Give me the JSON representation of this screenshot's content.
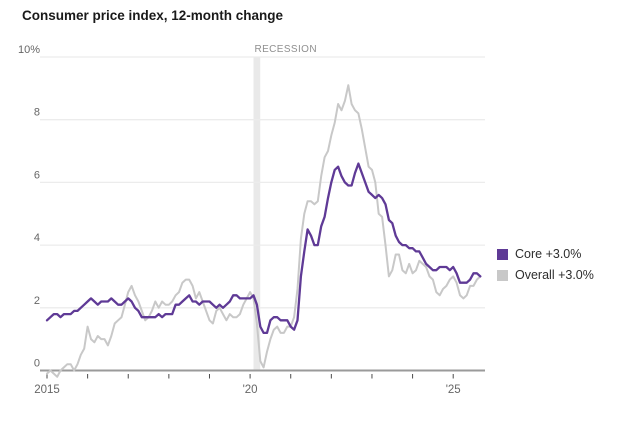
{
  "title": "Consumer price index, 12-month change",
  "colors": {
    "core": "#5f3a96",
    "overall": "#c8c8c8",
    "grid": "#ececec",
    "axis": "#9a9a9a",
    "tick": "#4a4a4a",
    "axis_label": "#666666",
    "recession_band": "#e9e9e9",
    "recession_text": "#8f8f8f",
    "title_text": "#1a1a1a",
    "legend_text": "#2d2d2d"
  },
  "recession": {
    "label": "RECESSION",
    "start": "2020-02",
    "end": "2020-04"
  },
  "legend": {
    "items": [
      {
        "name": "core",
        "label": "Core +3.0%",
        "color": "#5f3a96"
      },
      {
        "name": "overall",
        "label": "Overall +3.0%",
        "color": "#c8c8c8"
      }
    ]
  },
  "chart_data": {
    "type": "line",
    "title": "Consumer price index, 12-month change",
    "unit": "percent, 12-month change",
    "frequency": "monthly",
    "x_start": "2015-01",
    "x_end": "2025-09",
    "ylim": [
      0,
      10
    ],
    "grid": true,
    "legend_position": "right",
    "y_ticks": [
      0,
      2,
      4,
      6,
      8,
      10
    ],
    "y_tick_labels": [
      "0",
      "2",
      "4",
      "6",
      "8",
      "10%"
    ],
    "x_ticks": [
      {
        "year": 2015,
        "label": "2015"
      },
      {
        "year": 2016,
        "label": ""
      },
      {
        "year": 2017,
        "label": ""
      },
      {
        "year": 2018,
        "label": ""
      },
      {
        "year": 2019,
        "label": ""
      },
      {
        "year": 2020,
        "label": "'20"
      },
      {
        "year": 2021,
        "label": ""
      },
      {
        "year": 2022,
        "label": ""
      },
      {
        "year": 2023,
        "label": ""
      },
      {
        "year": 2024,
        "label": ""
      },
      {
        "year": 2025,
        "label": "'25"
      }
    ],
    "annotations": [
      {
        "text": "RECESSION",
        "x": "2020-02",
        "y": 10
      }
    ],
    "series": [
      {
        "name": "Core",
        "legend": "Core +3.0%",
        "latest_value": 3.0,
        "color": "#5f3a96",
        "values": [
          1.6,
          1.7,
          1.8,
          1.8,
          1.7,
          1.8,
          1.8,
          1.8,
          1.9,
          1.9,
          2.0,
          2.1,
          2.2,
          2.3,
          2.2,
          2.1,
          2.2,
          2.2,
          2.2,
          2.3,
          2.2,
          2.1,
          2.1,
          2.2,
          2.3,
          2.2,
          2.0,
          1.9,
          1.7,
          1.7,
          1.7,
          1.7,
          1.7,
          1.8,
          1.7,
          1.8,
          1.8,
          1.8,
          2.1,
          2.1,
          2.2,
          2.3,
          2.4,
          2.2,
          2.2,
          2.1,
          2.2,
          2.2,
          2.2,
          2.1,
          2.0,
          2.1,
          2.0,
          2.1,
          2.2,
          2.4,
          2.4,
          2.3,
          2.3,
          2.3,
          2.3,
          2.4,
          2.1,
          1.4,
          1.2,
          1.2,
          1.6,
          1.7,
          1.7,
          1.6,
          1.6,
          1.6,
          1.4,
          1.3,
          1.6,
          3.0,
          3.8,
          4.5,
          4.3,
          4.0,
          4.0,
          4.6,
          4.9,
          5.5,
          6.0,
          6.4,
          6.5,
          6.2,
          6.0,
          5.9,
          5.9,
          6.3,
          6.6,
          6.3,
          6.0,
          5.7,
          5.6,
          5.5,
          5.6,
          5.5,
          5.3,
          4.8,
          4.7,
          4.3,
          4.1,
          4.0,
          4.0,
          3.9,
          3.9,
          3.8,
          3.8,
          3.6,
          3.4,
          3.3,
          3.2,
          3.2,
          3.3,
          3.3,
          3.3,
          3.2,
          3.3,
          3.1,
          2.8,
          2.8,
          2.8,
          2.9,
          3.1,
          3.1,
          3.0
        ]
      },
      {
        "name": "Overall",
        "legend": "Overall +3.0%",
        "latest_value": 3.0,
        "color": "#c8c8c8",
        "values": [
          -0.1,
          0.0,
          -0.1,
          -0.2,
          0.0,
          0.1,
          0.2,
          0.2,
          0.0,
          0.2,
          0.5,
          0.7,
          1.4,
          1.0,
          0.9,
          1.1,
          1.0,
          1.0,
          0.8,
          1.1,
          1.5,
          1.6,
          1.7,
          2.1,
          2.5,
          2.7,
          2.4,
          2.2,
          1.9,
          1.6,
          1.7,
          1.9,
          2.2,
          2.0,
          2.2,
          2.1,
          2.1,
          2.2,
          2.4,
          2.5,
          2.8,
          2.9,
          2.9,
          2.7,
          2.3,
          2.5,
          2.2,
          1.9,
          1.6,
          1.5,
          1.9,
          2.0,
          1.8,
          1.6,
          1.8,
          1.7,
          1.7,
          1.8,
          2.1,
          2.3,
          2.5,
          2.3,
          1.5,
          0.3,
          0.1,
          0.6,
          1.0,
          1.3,
          1.4,
          1.2,
          1.2,
          1.4,
          1.4,
          1.7,
          2.6,
          4.2,
          5.0,
          5.4,
          5.4,
          5.3,
          5.4,
          6.2,
          6.8,
          7.0,
          7.5,
          7.9,
          8.5,
          8.3,
          8.6,
          9.1,
          8.5,
          8.3,
          8.2,
          7.7,
          7.1,
          6.5,
          6.4,
          6.0,
          5.0,
          4.9,
          4.0,
          3.0,
          3.2,
          3.7,
          3.7,
          3.2,
          3.1,
          3.4,
          3.1,
          3.2,
          3.5,
          3.4,
          3.3,
          3.0,
          2.9,
          2.5,
          2.4,
          2.6,
          2.7,
          2.9,
          3.0,
          2.8,
          2.4,
          2.3,
          2.4,
          2.7,
          2.7,
          2.9,
          3.0
        ]
      }
    ]
  }
}
